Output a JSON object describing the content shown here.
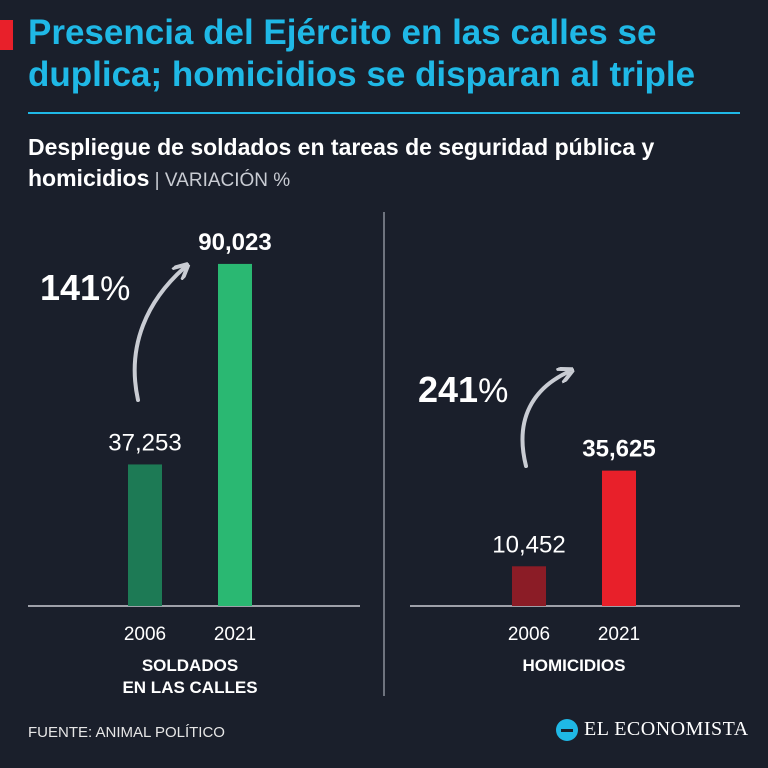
{
  "title": "Presencia del Ejército en las calles se duplica; homicidios se disparan al triple",
  "subtitle": {
    "main": "Despliegue de soldados en tareas de seguridad pública y homicidios",
    "separator": " | ",
    "unit": "VARIACIÓN %"
  },
  "colors": {
    "title": "#1fb8e6",
    "accent": "#e8202a",
    "soldiers_2006": "#1d7a55",
    "soldiers_2021": "#2ab872",
    "homicides_2006": "#8b1c26",
    "homicides_2021": "#e8202a",
    "background": "#1a1f2b"
  },
  "chart_data": [
    {
      "type": "bar",
      "panel_label": "SOLDADOS\nEN LAS CALLES",
      "categories": [
        "2006",
        "2021"
      ],
      "values": [
        37253,
        90023
      ],
      "value_labels": [
        "37,253",
        "90,023"
      ],
      "variation_label": "141",
      "variation_unit": "%",
      "ylim": [
        0,
        100000
      ]
    },
    {
      "type": "bar",
      "panel_label": "HOMICIDIOS",
      "categories": [
        "2006",
        "2021"
      ],
      "values": [
        10452,
        35625
      ],
      "value_labels": [
        "10,452",
        "35,625"
      ],
      "variation_label": "241",
      "variation_unit": "%",
      "ylim": [
        0,
        100000
      ]
    }
  ],
  "footer": {
    "source": "FUENTE: ANIMAL POLÍTICO",
    "brand": "EL ECONOMISTA"
  }
}
